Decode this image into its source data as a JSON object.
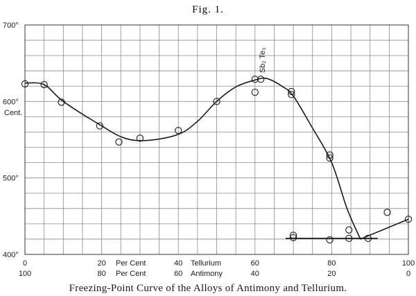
{
  "figure_label": "Fig. 1.",
  "caption": "Freezing-Point Curve of the Alloys of Antimony and Tellurium.",
  "chart_data": {
    "type": "line",
    "title": "",
    "xlim": [
      0,
      100
    ],
    "ylim": [
      400,
      700
    ],
    "grid": true,
    "y_unit": "Cent.",
    "y_ticks": [
      {
        "value": 400,
        "label": "400°"
      },
      {
        "value": 500,
        "label": "500°"
      },
      {
        "value": 600,
        "label": "600°"
      },
      {
        "value": 700,
        "label": "700°"
      }
    ],
    "x_ticks_tellurium": [
      "0",
      "20",
      "40",
      "60",
      "80",
      "100"
    ],
    "x_ticks_antimony": [
      "100",
      "80",
      "60",
      "40",
      "20",
      "0"
    ],
    "x_tick_values": [
      0,
      20,
      40,
      60,
      80,
      100
    ],
    "x_labels": {
      "per_cent_1": "Per Cent",
      "per_cent_2": "Per Cent",
      "tellurium": "Tellurium",
      "antimony": "Antimony"
    },
    "annotation": {
      "text": "Sb₂ Te₃",
      "x": 61.5,
      "y": 630
    },
    "observations": [
      {
        "x": 0,
        "y": 623
      },
      {
        "x": 5,
        "y": 622
      },
      {
        "x": 9.5,
        "y": 599
      },
      {
        "x": 19.5,
        "y": 568
      },
      {
        "x": 24.5,
        "y": 547
      },
      {
        "x": 30,
        "y": 552
      },
      {
        "x": 40,
        "y": 562
      },
      {
        "x": 50,
        "y": 600
      },
      {
        "x": 60,
        "y": 612
      },
      {
        "x": 60,
        "y": 629
      },
      {
        "x": 61.5,
        "y": 629
      },
      {
        "x": 69.5,
        "y": 613
      },
      {
        "x": 69.5,
        "y": 609
      },
      {
        "x": 70,
        "y": 425
      },
      {
        "x": 70,
        "y": 422
      },
      {
        "x": 79.5,
        "y": 530
      },
      {
        "x": 79.5,
        "y": 526
      },
      {
        "x": 79.5,
        "y": 419
      },
      {
        "x": 84.5,
        "y": 432
      },
      {
        "x": 84.5,
        "y": 421
      },
      {
        "x": 89.5,
        "y": 421
      },
      {
        "x": 94.5,
        "y": 455
      },
      {
        "x": 100,
        "y": 446
      }
    ],
    "liquidus_curve": [
      {
        "x": 0,
        "y": 624
      },
      {
        "x": 5,
        "y": 622
      },
      {
        "x": 10,
        "y": 600
      },
      {
        "x": 20,
        "y": 568
      },
      {
        "x": 26,
        "y": 552
      },
      {
        "x": 32,
        "y": 549
      },
      {
        "x": 40,
        "y": 557
      },
      {
        "x": 45,
        "y": 574
      },
      {
        "x": 50,
        "y": 600
      },
      {
        "x": 55,
        "y": 619
      },
      {
        "x": 60,
        "y": 628
      },
      {
        "x": 63,
        "y": 630
      },
      {
        "x": 67,
        "y": 620
      },
      {
        "x": 70,
        "y": 607
      },
      {
        "x": 75,
        "y": 565
      },
      {
        "x": 80,
        "y": 520
      },
      {
        "x": 84,
        "y": 460
      },
      {
        "x": 87.5,
        "y": 420
      },
      {
        "x": 100,
        "y": 446
      }
    ],
    "eutectic_line": {
      "x": [
        68,
        92
      ],
      "y": 421
    }
  }
}
